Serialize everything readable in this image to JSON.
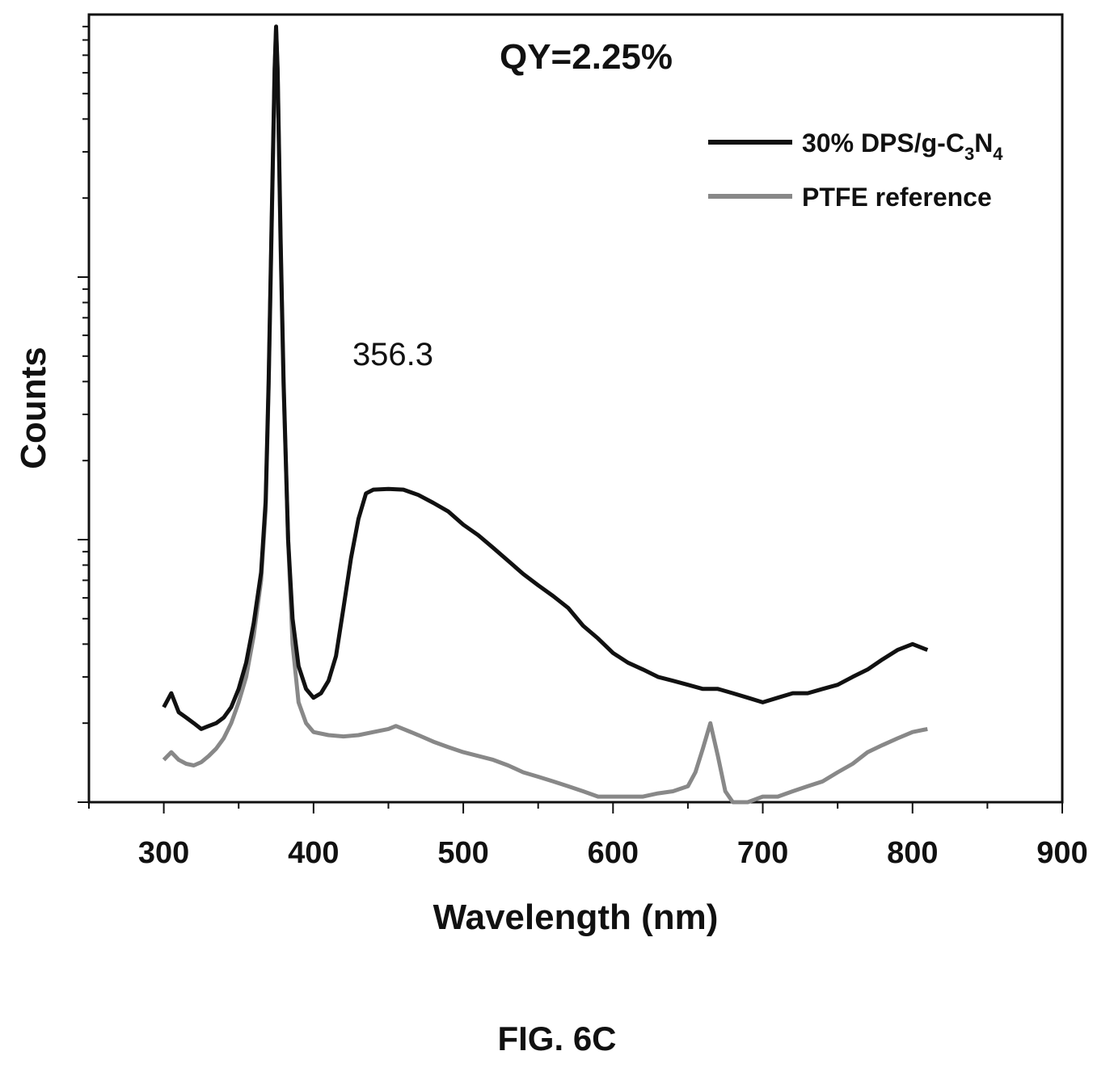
{
  "chart_data": {
    "type": "line",
    "title": "QY=2.25%",
    "xlabel": "Wavelength (nm)",
    "ylabel": "Counts",
    "xlim": [
      250,
      900
    ],
    "x_ticks": [
      "300",
      "400",
      "500",
      "600",
      "700",
      "800",
      "900"
    ],
    "y_scale": "log",
    "y_tick_labels_shown": false,
    "grid": false,
    "legend_position": "top-right",
    "annotation": "356.3",
    "series": [
      {
        "name": "30% DPS/g-C3N4",
        "legend_text": "30% DPS/g-C",
        "legend_sub1": "3",
        "legend_mid": "N",
        "legend_sub2": "4",
        "color": "#111111",
        "x": [
          300,
          305,
          310,
          315,
          320,
          325,
          330,
          335,
          340,
          345,
          350,
          355,
          360,
          365,
          368,
          370,
          372,
          374,
          375,
          376,
          378,
          380,
          383,
          386,
          390,
          395,
          400,
          405,
          410,
          415,
          420,
          425,
          430,
          435,
          440,
          450,
          460,
          470,
          480,
          490,
          500,
          510,
          520,
          530,
          540,
          550,
          560,
          570,
          580,
          590,
          600,
          610,
          620,
          630,
          640,
          650,
          660,
          670,
          680,
          690,
          700,
          710,
          720,
          730,
          740,
          750,
          760,
          770,
          780,
          790,
          800,
          810
        ],
        "y": [
          2.3,
          2.6,
          2.2,
          2.1,
          2.0,
          1.9,
          1.95,
          2.0,
          2.1,
          2.3,
          2.7,
          3.4,
          4.8,
          7.5,
          14,
          40,
          160,
          620,
          900,
          620,
          140,
          40,
          10,
          5.0,
          3.3,
          2.7,
          2.5,
          2.6,
          2.9,
          3.6,
          5.5,
          8.5,
          12,
          15,
          15.5,
          15.6,
          15.5,
          14.8,
          13.8,
          12.8,
          11.4,
          10.4,
          9.3,
          8.3,
          7.4,
          6.7,
          6.1,
          5.5,
          4.7,
          4.2,
          3.7,
          3.4,
          3.2,
          3.0,
          2.9,
          2.8,
          2.7,
          2.7,
          2.6,
          2.5,
          2.4,
          2.5,
          2.6,
          2.6,
          2.7,
          2.8,
          3.0,
          3.2,
          3.5,
          3.8,
          4.0,
          3.8
        ]
      },
      {
        "name": "PTFE reference",
        "color": "#888888",
        "x": [
          300,
          305,
          310,
          315,
          320,
          325,
          330,
          335,
          340,
          345,
          350,
          355,
          360,
          365,
          368,
          370,
          372,
          374,
          375,
          376,
          378,
          380,
          383,
          386,
          390,
          395,
          400,
          410,
          420,
          430,
          440,
          450,
          455,
          460,
          470,
          480,
          490,
          500,
          510,
          520,
          530,
          540,
          550,
          560,
          570,
          580,
          590,
          600,
          610,
          620,
          630,
          640,
          650,
          655,
          660,
          665,
          670,
          675,
          680,
          690,
          700,
          710,
          720,
          730,
          740,
          750,
          760,
          770,
          780,
          790,
          800,
          810
        ],
        "y": [
          1.45,
          1.55,
          1.45,
          1.4,
          1.38,
          1.42,
          1.5,
          1.6,
          1.75,
          2.0,
          2.4,
          3.0,
          4.3,
          7.0,
          13,
          38,
          150,
          600,
          880,
          600,
          130,
          38,
          10,
          4.0,
          2.4,
          2.0,
          1.85,
          1.8,
          1.78,
          1.8,
          1.85,
          1.9,
          1.95,
          1.9,
          1.8,
          1.7,
          1.62,
          1.55,
          1.5,
          1.45,
          1.38,
          1.3,
          1.25,
          1.2,
          1.15,
          1.1,
          1.05,
          1.05,
          1.05,
          1.05,
          1.08,
          1.1,
          1.15,
          1.3,
          1.6,
          2.0,
          1.5,
          1.1,
          1.0,
          1.0,
          1.05,
          1.05,
          1.1,
          1.15,
          1.2,
          1.3,
          1.4,
          1.55,
          1.65,
          1.75,
          1.85,
          1.9
        ]
      }
    ]
  },
  "caption": "FIG. 6C"
}
